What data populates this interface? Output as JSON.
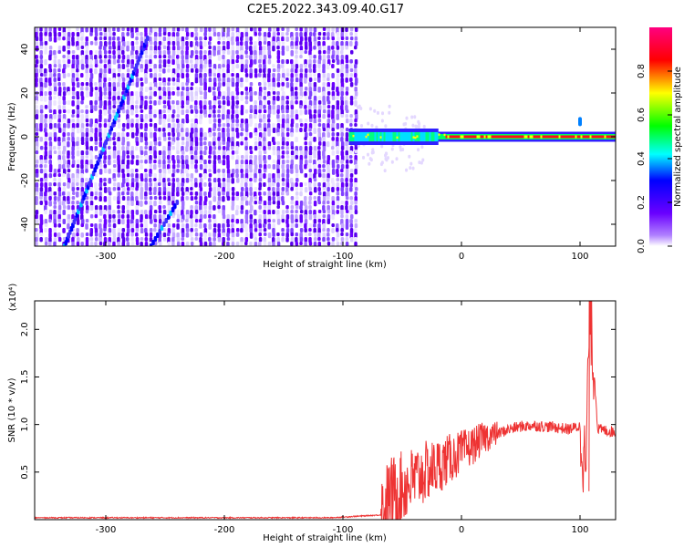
{
  "chart_data": [
    {
      "type": "heatmap",
      "title": "C2E5.2022.343.09.40.G17",
      "xlabel": "Height of straight line (km)",
      "ylabel": "Frequency (Hz)",
      "xlim": [
        -360,
        130
      ],
      "ylim": [
        -50,
        50
      ],
      "xticks": [
        -300,
        -200,
        -100,
        0,
        100
      ],
      "yticks": [
        -40,
        -20,
        0,
        20,
        40
      ],
      "colorbar": {
        "label": "Normalized spectral amplitude",
        "range": [
          0,
          1
        ],
        "ticks": [
          "0.0",
          "0.2",
          "0.4",
          "0.6",
          "0.8"
        ],
        "colors": [
          "#ffffff",
          "#6a00ff",
          "#0000ff",
          "#00ffff",
          "#00ff00",
          "#ffff00",
          "#ff0000",
          "#ff0080"
        ]
      },
      "features": {
        "noise_region_x": [
          -360,
          -90
        ],
        "signal_x": [
          -95,
          130
        ],
        "signal_frequency_hz": 0,
        "streak1": [
          [
            -335,
            -50
          ],
          [
            -265,
            45
          ]
        ],
        "streak2": [
          [
            -262,
            -50
          ],
          [
            -240,
            -30
          ]
        ]
      }
    },
    {
      "type": "line",
      "xlabel": "Height of straight line (km)",
      "ylabel": "SNR (10 * v/v)",
      "scale_label": "(x10⁴)",
      "xlim": [
        -360,
        130
      ],
      "ylim": [
        0,
        2.3
      ],
      "xticks": [
        -300,
        -200,
        -100,
        0,
        100
      ],
      "yticks": [
        "0.5",
        "1.0",
        "1.5",
        "2.0"
      ],
      "line_color": "#ee3333",
      "series": [
        {
          "x": [
            -360,
            -300,
            -200,
            -110,
            -68,
            -60,
            -50,
            -40,
            -30,
            -20,
            -10,
            0,
            10,
            20,
            30,
            40,
            50,
            60,
            70,
            80,
            90,
            100,
            105,
            108,
            115,
            130
          ],
          "y": [
            0.02,
            0.02,
            0.02,
            0.02,
            0.05,
            0.25,
            0.33,
            0.42,
            0.5,
            0.56,
            0.64,
            0.71,
            0.78,
            0.87,
            0.9,
            0.95,
            0.98,
            0.99,
            0.98,
            0.97,
            0.95,
            0.98,
            0.5,
            2.3,
            0.95,
            0.92
          ]
        }
      ]
    }
  ]
}
